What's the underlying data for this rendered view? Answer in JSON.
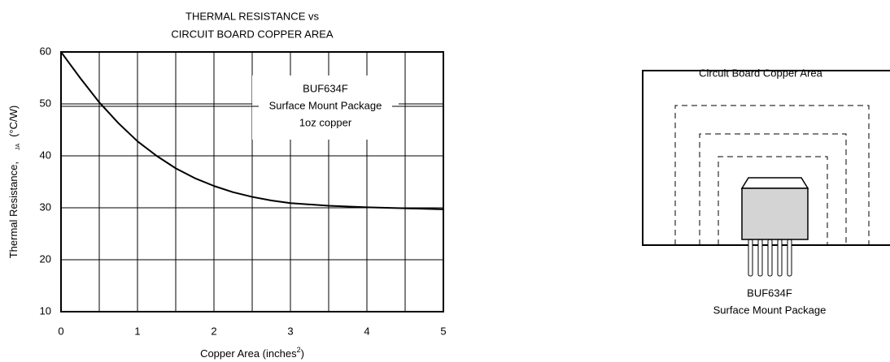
{
  "chart_data": {
    "type": "line",
    "title": [
      "THERMAL RESISTANCE vs",
      "CIRCUIT BOARD COPPER AREA"
    ],
    "x_label": [
      "Copper Area (inches",
      "2",
      ")"
    ],
    "y_label": [
      "Thermal Resistance,",
      "JA",
      "(°C/W)"
    ],
    "annotation": [
      "BUF634F",
      "Surface Mount Package",
      "1oz copper"
    ],
    "x": [
      0,
      0.1,
      0.25,
      0.5,
      0.75,
      1,
      1.25,
      1.5,
      1.75,
      2,
      2.25,
      2.5,
      2.75,
      3,
      3.5,
      4,
      4.5,
      5
    ],
    "values": [
      60,
      58,
      55,
      50.3,
      46.3,
      42.8,
      40,
      37.6,
      35.7,
      34.2,
      33,
      32.1,
      31.4,
      30.9,
      30.4,
      30.1,
      29.9,
      29.7
    ],
    "color": "#000000",
    "xlim": [
      0,
      5
    ],
    "xticks": [
      0,
      1,
      2,
      3,
      4,
      5
    ],
    "xminor": [
      0.5,
      1.5,
      2.5,
      3.5,
      4.5
    ],
    "ylim": [
      10,
      60
    ],
    "yticks": [
      10,
      20,
      30,
      40,
      50,
      60
    ],
    "grid": true
  },
  "diagram": {
    "title": "Circuit Board Copper Area",
    "label": [
      "BUF634F",
      "Surface Mount Package"
    ]
  }
}
